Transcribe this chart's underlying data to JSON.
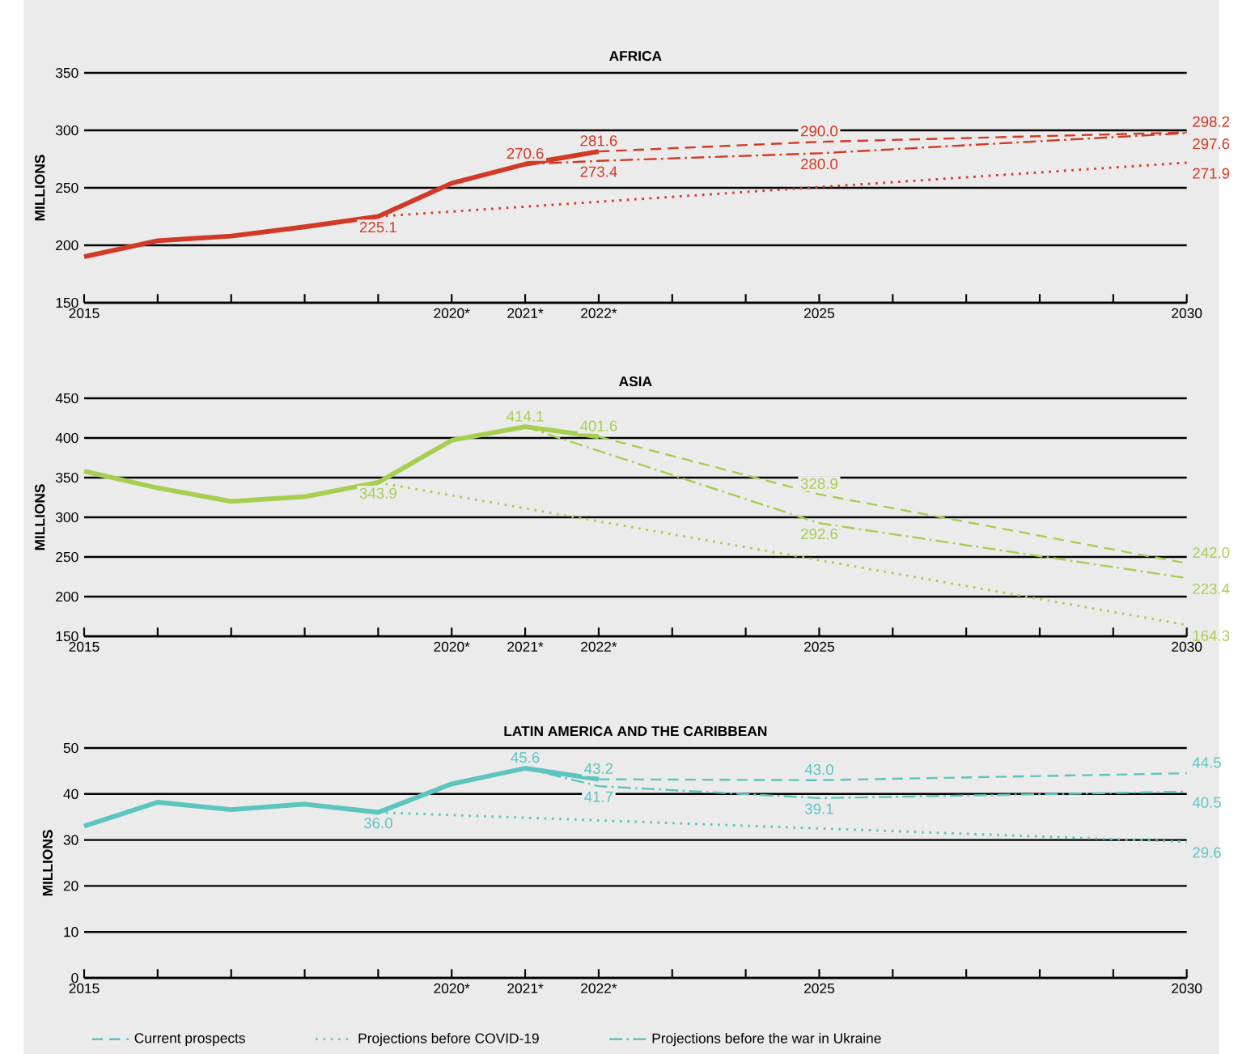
{
  "chart_data": [
    {
      "type": "line",
      "title": "AFRICA",
      "ylabel": "MILLIONS",
      "xlim": [
        2015,
        2030
      ],
      "ylim": [
        150,
        350
      ],
      "yticks": [
        150,
        200,
        250,
        300,
        350
      ],
      "grid": "y",
      "xticks": [
        2015,
        {
          "value": 2016,
          "label": null
        },
        {
          "value": 2017,
          "label": null
        },
        {
          "value": 2018,
          "label": null
        },
        {
          "value": 2019,
          "label": null
        },
        {
          "value": 2020,
          "label": "2020*"
        },
        {
          "value": 2021,
          "label": "2021*"
        },
        {
          "value": 2022,
          "label": "2022*"
        },
        {
          "value": 2023,
          "label": null
        },
        {
          "value": 2024,
          "label": null
        },
        2025,
        {
          "value": 2026,
          "label": null
        },
        {
          "value": 2027,
          "label": null
        },
        {
          "value": 2028,
          "label": null
        },
        {
          "value": 2029,
          "label": null
        },
        2030
      ],
      "series": [
        {
          "color": "#d13a27",
          "line_style": "solid",
          "x": [
            2015,
            2016,
            2017,
            2018,
            2019,
            2020,
            2021,
            2022
          ],
          "values": [
            190,
            204,
            208,
            216,
            225.1,
            254,
            270.6,
            281.6
          ],
          "value_labels": [
            null,
            null,
            null,
            null,
            "225.1",
            null,
            "270.6",
            "281.6"
          ]
        },
        {
          "color": "#d13a27",
          "line_style": "dashed",
          "x": [
            2022,
            2025,
            2030
          ],
          "values": [
            281.6,
            290.0,
            298.2
          ],
          "value_labels": [
            null,
            "290.0",
            "298.2"
          ]
        },
        {
          "color": "#d13a27",
          "line_style": "dotted",
          "x": [
            2019,
            2030
          ],
          "values": [
            225.1,
            271.9
          ],
          "value_labels": [
            null,
            "271.9"
          ]
        },
        {
          "color": "#d13a27",
          "line_style": "dashdot",
          "x": [
            2021,
            2022,
            2025,
            2030
          ],
          "values": [
            270.6,
            273.4,
            280.0,
            297.6
          ],
          "value_labels": [
            null,
            "273.4",
            "280.0",
            "297.6"
          ]
        }
      ]
    },
    {
      "type": "line",
      "title": "ASIA",
      "ylabel": "MILLIONS",
      "xlim": [
        2015,
        2030
      ],
      "ylim": [
        150,
        450
      ],
      "yticks": [
        150,
        200,
        250,
        300,
        350,
        400,
        450
      ],
      "grid": "y",
      "xticks": [
        2015,
        {
          "value": 2016,
          "label": null
        },
        {
          "value": 2017,
          "label": null
        },
        {
          "value": 2018,
          "label": null
        },
        {
          "value": 2019,
          "label": null
        },
        {
          "value": 2020,
          "label": "2020*"
        },
        {
          "value": 2021,
          "label": "2021*"
        },
        {
          "value": 2022,
          "label": "2022*"
        },
        {
          "value": 2023,
          "label": null
        },
        {
          "value": 2024,
          "label": null
        },
        2025,
        {
          "value": 2026,
          "label": null
        },
        {
          "value": 2027,
          "label": null
        },
        {
          "value": 2028,
          "label": null
        },
        {
          "value": 2029,
          "label": null
        },
        2030
      ],
      "series": [
        {
          "color": "#a6cf52",
          "line_style": "solid",
          "x": [
            2015,
            2016,
            2017,
            2018,
            2019,
            2020,
            2021,
            2022
          ],
          "values": [
            358,
            337,
            320,
            326,
            343.9,
            397,
            414.1,
            401.6
          ],
          "value_labels": [
            null,
            null,
            null,
            null,
            "343.9",
            null,
            "414.1",
            "401.6"
          ]
        },
        {
          "color": "#a6cf52",
          "line_style": "dashed",
          "x": [
            2022,
            2025,
            2030
          ],
          "values": [
            401.6,
            328.9,
            242.0
          ],
          "value_labels": [
            null,
            "328.9",
            "242.0"
          ]
        },
        {
          "color": "#a6cf52",
          "line_style": "dotted",
          "x": [
            2019,
            2030
          ],
          "values": [
            343.9,
            164.3
          ],
          "value_labels": [
            null,
            "164.3"
          ]
        },
        {
          "color": "#a6cf52",
          "line_style": "dashdot",
          "x": [
            2021,
            2025,
            2030
          ],
          "values": [
            414.1,
            292.6,
            223.4
          ],
          "value_labels": [
            null,
            "292.6",
            "223.4"
          ]
        }
      ]
    },
    {
      "type": "line",
      "title": "LATIN AMERICA AND THE CARIBBEAN",
      "ylabel": "MILLIONS",
      "xlim": [
        2015,
        2030
      ],
      "ylim": [
        0,
        50
      ],
      "yticks": [
        0,
        10,
        20,
        30,
        40,
        50
      ],
      "grid": "y",
      "legend": "bottom",
      "xticks": [
        2015,
        {
          "value": 2016,
          "label": null
        },
        {
          "value": 2017,
          "label": null
        },
        {
          "value": 2018,
          "label": null
        },
        {
          "value": 2019,
          "label": null
        },
        {
          "value": 2020,
          "label": "2020*"
        },
        {
          "value": 2021,
          "label": "2021*"
        },
        {
          "value": 2022,
          "label": "2022*"
        },
        {
          "value": 2023,
          "label": null
        },
        {
          "value": 2024,
          "label": null
        },
        2025,
        {
          "value": 2026,
          "label": null
        },
        {
          "value": 2027,
          "label": null
        },
        {
          "value": 2028,
          "label": null
        },
        {
          "value": 2029,
          "label": null
        },
        2030
      ],
      "series": [
        {
          "color": "#5cc5bf",
          "line_style": "solid",
          "x": [
            2015,
            2016,
            2017,
            2018,
            2019,
            2020,
            2021,
            2022
          ],
          "values": [
            33.0,
            38.2,
            36.6,
            37.8,
            36.0,
            42.2,
            45.6,
            43.2
          ],
          "value_labels": [
            null,
            null,
            null,
            null,
            "36.0",
            null,
            "45.6",
            "43.2"
          ]
        },
        {
          "name": "Current prospects",
          "color": "#5cc5bf",
          "line_style": "dashed",
          "x": [
            2022,
            2025,
            2030
          ],
          "values": [
            43.2,
            43.0,
            44.5
          ],
          "value_labels": [
            null,
            "43.0",
            "44.5"
          ]
        },
        {
          "name": "Projections before COVID-19",
          "color": "#5cc5bf",
          "line_style": "dotted",
          "x": [
            2019,
            2030
          ],
          "values": [
            36.0,
            29.6
          ],
          "value_labels": [
            null,
            "29.6"
          ]
        },
        {
          "name": "Projections before the war in Ukraine",
          "color": "#5cc5bf",
          "line_style": "dashdot",
          "x": [
            2021,
            2022,
            2025,
            2030
          ],
          "values": [
            45.6,
            41.7,
            39.1,
            40.5
          ],
          "value_labels": [
            null,
            "41.7",
            "39.1",
            "40.5"
          ]
        }
      ]
    }
  ]
}
